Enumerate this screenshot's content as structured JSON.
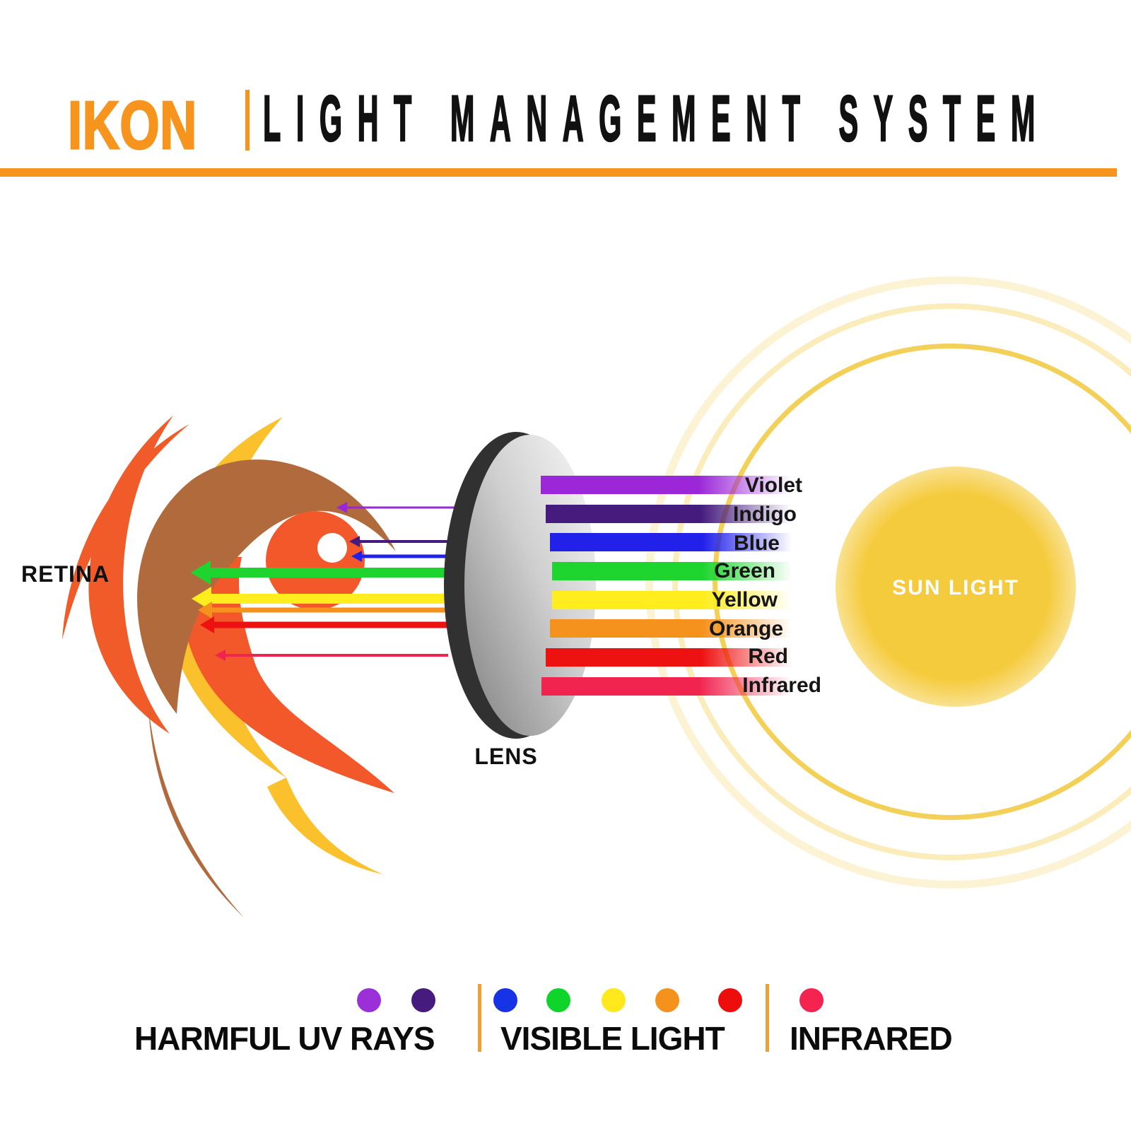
{
  "header": {
    "brand": "IKON",
    "title": "LIGHT MANAGEMENT SYSTEM",
    "accent_color": "#F7941E"
  },
  "diagram": {
    "retina_label": "RETINA",
    "lens_label": "LENS",
    "sun_label": "SUN LIGHT",
    "sun_core_color": "#F5CB3E",
    "spectrum": [
      {
        "label": "Violet",
        "color": "#9B27D8"
      },
      {
        "label": "Indigo",
        "color": "#461B7E"
      },
      {
        "label": "Blue",
        "color": "#2121EA"
      },
      {
        "label": "Green",
        "color": "#1ED52F"
      },
      {
        "label": "Yellow",
        "color": "#FFED1E"
      },
      {
        "label": "Orange",
        "color": "#F5921E"
      },
      {
        "label": "Red",
        "color": "#EE1111"
      },
      {
        "label": "Infrared",
        "color": "#F0244E"
      }
    ]
  },
  "legend": {
    "groups": [
      {
        "label": "HARMFUL UV RAYS",
        "dots": [
          "#9B30D9",
          "#461B7E"
        ]
      },
      {
        "label": "VISIBLE LIGHT",
        "dots": [
          "#1733E6",
          "#0FD52A",
          "#FFE81C",
          "#F5921E",
          "#EE0D0D"
        ]
      },
      {
        "label": "INFRARED",
        "dots": [
          "#F4234F"
        ]
      }
    ]
  }
}
